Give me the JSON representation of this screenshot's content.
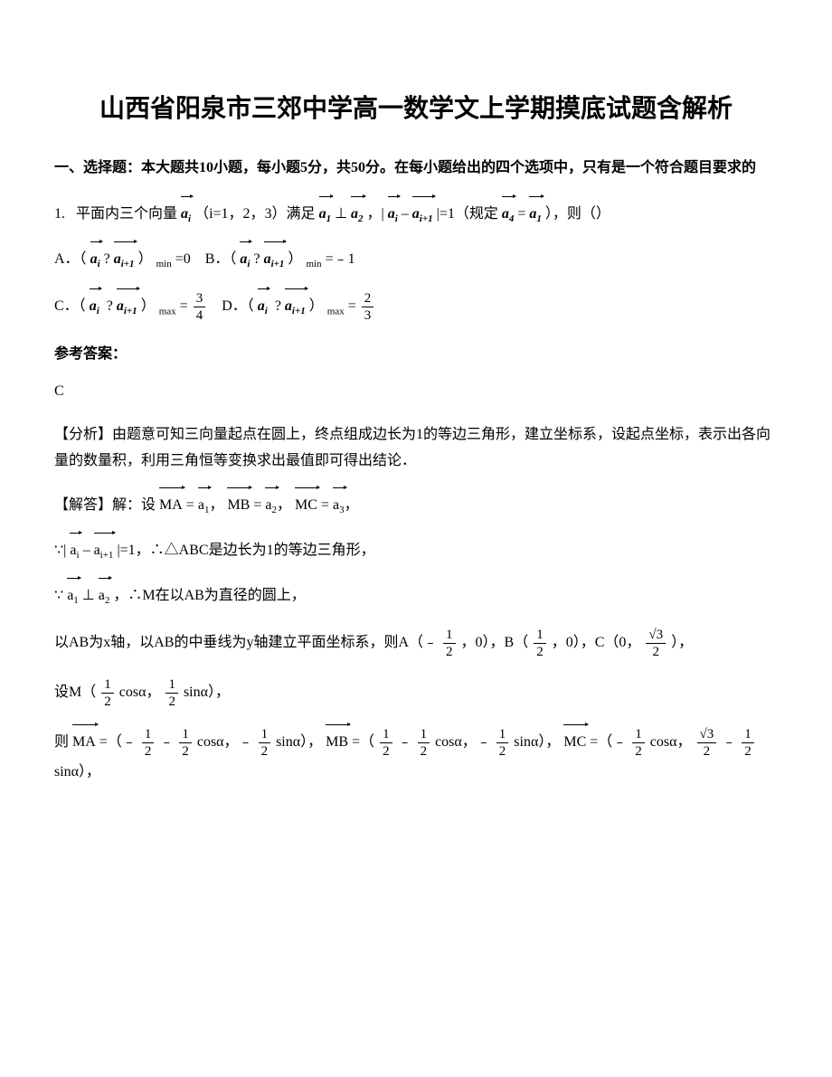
{
  "title": "山西省阳泉市三郊中学高一数学文上学期摸底试题含解析",
  "section1_heading": "一、选择题：本大题共10小题，每小题5分，共50分。在每小题给出的四个选项中，只有是一个符合题目要求的",
  "q1": {
    "number": "1.",
    "stem_part1": "平面内三个向量",
    "stem_part2": "（i=1，2，3）满足",
    "stem_part3": "，|",
    "stem_part4": "|=1（规定",
    "stem_part5": "），则（）",
    "vec_ai": "a",
    "vec_a1": "a",
    "vec_a2": "a",
    "vec_a4": "a",
    "perp": "⊥",
    "minus": "–",
    "eq": "=",
    "optA_label": "A．（",
    "optA_mid": "?",
    "optA_tail": "）",
    "optA_sub": "min",
    "optA_val": "=0",
    "optB_label": "B．（",
    "optB_mid": "?",
    "optB_tail": "）",
    "optB_sub": "min",
    "optB_val": "=﹣1",
    "optC_label": "C．（",
    "optC_mid": "?",
    "optC_tail": "）",
    "optC_sub": "max",
    "optC_eq": "=",
    "optC_num": "3",
    "optC_den": "4",
    "optD_label": "D．（",
    "optD_mid": "?",
    "optD_tail": "）",
    "optD_sub": "max",
    "optD_eq": "=",
    "optD_num": "2",
    "optD_den": "3"
  },
  "answer_label": "参考答案：",
  "answer": "C",
  "analysis_label": "【分析】",
  "analysis_text": "由题意可知三向量起点在圆上，终点组成边长为1的等边三角形，建立坐标系，设起点坐标，表示出各向量的数量积，利用三角恒等变换求出最值即可得出结论．",
  "solution_label": "【解答】解：设",
  "sol_MA": "MA",
  "sol_eq_a1": "=",
  "sol_a1": "a",
  "sol_comma1": "，",
  "sol_MB": "MB",
  "sol_eq_a2": "=",
  "sol_a2": "a",
  "sol_comma2": "，",
  "sol_MC": "MC",
  "sol_eq_a3": "=",
  "sol_a3": "a",
  "sol_comma3": "，",
  "sol_line2_pre": "∵|",
  "sol_line2_minus": "–",
  "sol_line2_post": "|=1，∴△ABC是边长为1的等边三角形，",
  "sol_line3_pre": "∵",
  "sol_line3_perp": "⊥",
  "sol_line3_post": "，∴M在以AB为直径的圆上，",
  "sol_line4_pre": "以AB为x轴，以AB的中垂线为y轴建立平面坐标系，则A（﹣",
  "sol_line4_half_num": "1",
  "sol_line4_half_den": "2",
  "sol_line4_mid1": "，0），B（",
  "sol_line4_mid2": "，0），C（0，",
  "sol_line4_sqrt3_num": "√3",
  "sol_line4_sqrt3_den": "2",
  "sol_line4_end": "），",
  "sol_line5_pre": "设M（",
  "sol_line5_cos": "cosα，",
  "sol_line5_sin": "sinα），",
  "sol_line6_pre": "则",
  "sol_line6_MA": "MA",
  "sol_line6_eq1": "=（﹣",
  "sol_line6_minus": "﹣",
  "sol_line6_cos": "cosα，﹣",
  "sol_line6_sin": "sinα），",
  "sol_line6_MB": "MB",
  "sol_line6_eq2": "=（",
  "sol_line6_MC": "MC",
  "sol_line6_eq3": "=（﹣",
  "sol_line6_sinend": "sinα），"
}
